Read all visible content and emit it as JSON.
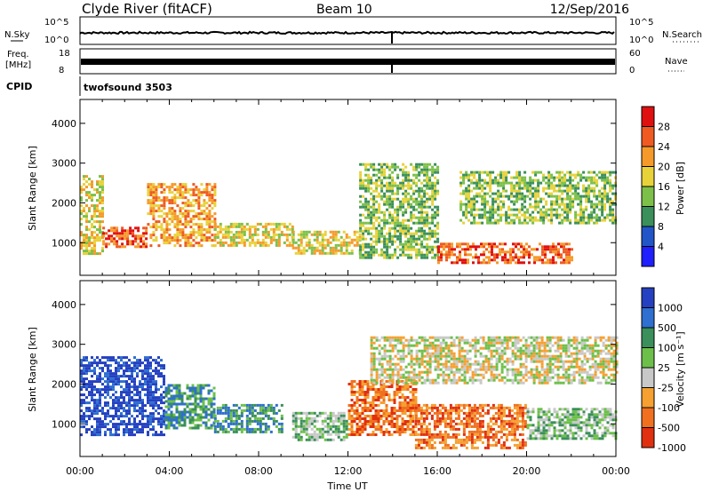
{
  "header": {
    "station": "Clyde River (fitACF)",
    "beam": "Beam 10",
    "date": "12/Sep/2016"
  },
  "summary": {
    "nsky_label": "N.Sky",
    "nsky_ticks": [
      "10^5",
      "10^0"
    ],
    "nsearch_label": "N.Search",
    "nsearch_ticks": [
      "10^5",
      "10^0"
    ],
    "freq_label_1": "Freq.",
    "freq_label_2": "[MHz]",
    "freq_ticks": [
      "18",
      "8"
    ],
    "nave_label": "Nave",
    "nave_ticks": [
      "60",
      "0"
    ],
    "cpid_label": "CPID",
    "cpid_value": "twofsound 3503"
  },
  "chart_data": [
    {
      "type": "heatmap",
      "name": "power-panel",
      "xlabel": "",
      "ylabel": "Slant Range [km]",
      "yticks": [
        "1000",
        "2000",
        "3000",
        "4000"
      ],
      "ylim": [
        180,
        4600
      ],
      "xlim": [
        0,
        24
      ],
      "colorbar_label": "Power [dB]",
      "colorbar_ticks": [
        "4",
        "8",
        "12",
        "16",
        "20",
        "24",
        "28"
      ],
      "colors": [
        "#1f1fff",
        "#2255c8",
        "#3a8f5a",
        "#7cc04a",
        "#e8d23a",
        "#f59a2a",
        "#ef5a22",
        "#e01010"
      ],
      "regions": [
        {
          "t0": 0.0,
          "t1": 1.0,
          "r0": 700,
          "r1": 2700,
          "level": 4
        },
        {
          "t0": 1.0,
          "t1": 3.0,
          "r0": 900,
          "r1": 1400,
          "level": 6
        },
        {
          "t0": 3.0,
          "t1": 6.0,
          "r0": 900,
          "r1": 2500,
          "level": 5
        },
        {
          "t0": 6.0,
          "t1": 9.5,
          "r0": 900,
          "r1": 1500,
          "level": 4
        },
        {
          "t0": 9.5,
          "t1": 12.5,
          "r0": 700,
          "r1": 1300,
          "level": 4
        },
        {
          "t0": 12.5,
          "t1": 16.0,
          "r0": 600,
          "r1": 3000,
          "level": 3
        },
        {
          "t0": 16.0,
          "t1": 22.0,
          "r0": 500,
          "r1": 1000,
          "level": 6
        },
        {
          "t0": 17.0,
          "t1": 24.0,
          "r0": 1500,
          "r1": 2800,
          "level": 3
        }
      ]
    },
    {
      "type": "heatmap",
      "name": "velocity-panel",
      "xlabel": "Time UT",
      "ylabel": "Slant Range [km]",
      "xticks": [
        "00:00",
        "04:00",
        "08:00",
        "12:00",
        "16:00",
        "20:00",
        "00:00"
      ],
      "yticks": [
        "1000",
        "2000",
        "3000",
        "4000"
      ],
      "ylim": [
        180,
        4600
      ],
      "xlim": [
        0,
        24
      ],
      "colorbar_label": "Velocity [m s⁻¹]",
      "colorbar_ticks": [
        "1000",
        "500",
        "100",
        "25",
        "-25",
        "-100",
        "-500",
        "-1000"
      ],
      "colors": [
        "#2540c0",
        "#2e6fd0",
        "#3a8f5a",
        "#6cc04a",
        "#c8c8c8",
        "#f5a030",
        "#f07020",
        "#e03010"
      ],
      "regions": [
        {
          "t0": 0.0,
          "t1": 3.8,
          "r0": 700,
          "r1": 2700,
          "level": 0
        },
        {
          "t0": 3.8,
          "t1": 6.0,
          "r0": 900,
          "r1": 2000,
          "level": 2
        },
        {
          "t0": 6.0,
          "t1": 9.0,
          "r0": 800,
          "r1": 1500,
          "level": 2
        },
        {
          "t0": 9.5,
          "t1": 12.0,
          "r0": 600,
          "r1": 1300,
          "level": 3
        },
        {
          "t0": 12.0,
          "t1": 15.0,
          "r0": 700,
          "r1": 2100,
          "level": 6
        },
        {
          "t0": 13.0,
          "t1": 24.0,
          "r0": 2000,
          "r1": 3200,
          "level": 4
        },
        {
          "t0": 15.0,
          "t1": 20.0,
          "r0": 400,
          "r1": 1500,
          "level": 6
        },
        {
          "t0": 20.0,
          "t1": 24.0,
          "r0": 600,
          "r1": 1400,
          "level": 3
        }
      ]
    }
  ]
}
